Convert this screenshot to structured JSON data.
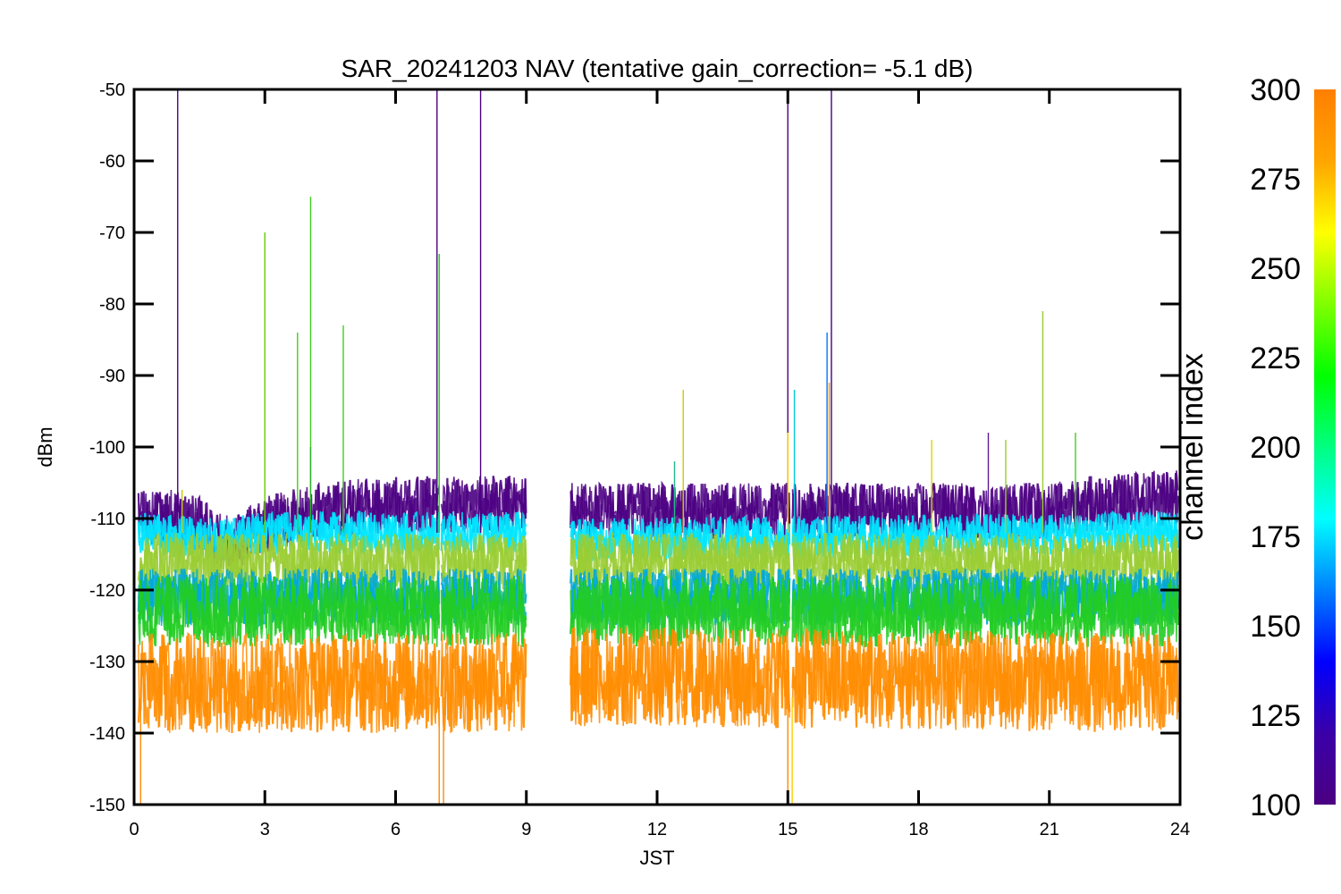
{
  "chart_data": {
    "type": "line",
    "title": "SAR_20241203 NAV (tentative gain_correction= -5.1 dB)",
    "xlabel": "JST",
    "ylabel": "dBm",
    "xlim": [
      0,
      24
    ],
    "ylim": [
      -150,
      -50
    ],
    "xticks": [
      0,
      3,
      6,
      9,
      12,
      15,
      18,
      21,
      24
    ],
    "yticks": [
      -50,
      -60,
      -70,
      -80,
      -90,
      -100,
      -110,
      -120,
      -130,
      -140,
      -150
    ],
    "data_gaps": [
      [
        7.0,
        7.05
      ],
      [
        9.0,
        10.0
      ],
      [
        15.05,
        15.1
      ]
    ],
    "series": [
      {
        "channel": 100,
        "color": "#4b0082",
        "spread": 4,
        "points": [
          [
            0,
            -110
          ],
          [
            1,
            -110
          ],
          [
            1.5,
            -111
          ],
          [
            2.0,
            -113
          ],
          [
            2.3,
            -114
          ],
          [
            2.6,
            -112
          ],
          [
            3,
            -111
          ],
          [
            4,
            -109
          ],
          [
            6,
            -108
          ],
          [
            9,
            -108
          ],
          [
            10,
            -109
          ],
          [
            12,
            -109
          ],
          [
            15,
            -109
          ],
          [
            18,
            -109
          ],
          [
            21,
            -109
          ],
          [
            22,
            -108
          ],
          [
            24,
            -107
          ]
        ]
      },
      {
        "channel": 175,
        "color": "#00e5ff",
        "spread": 3,
        "points": [
          [
            0,
            -112
          ],
          [
            2,
            -113
          ],
          [
            3,
            -112
          ],
          [
            9,
            -112
          ],
          [
            10,
            -113
          ],
          [
            24,
            -112
          ]
        ]
      },
      {
        "channel": 240,
        "color": "#9acd32",
        "spread": 4,
        "points": [
          [
            0,
            -116
          ],
          [
            9,
            -116
          ],
          [
            10,
            -116
          ],
          [
            24,
            -116
          ]
        ]
      },
      {
        "channel": 160,
        "color": "#00a8d8",
        "spread": 4,
        "points": [
          [
            0,
            -121
          ],
          [
            9,
            -121
          ],
          [
            10,
            -121
          ],
          [
            24,
            -121
          ]
        ]
      },
      {
        "channel": 225,
        "color": "#22cc22",
        "spread": 5,
        "points": [
          [
            0,
            -123
          ],
          [
            9,
            -123
          ],
          [
            10,
            -123
          ],
          [
            24,
            -123
          ]
        ]
      },
      {
        "channel": 290,
        "color": "#ff8c00",
        "spread": 7,
        "points": [
          [
            0,
            -133
          ],
          [
            9,
            -133
          ],
          [
            10,
            -132
          ],
          [
            24,
            -133
          ]
        ]
      }
    ],
    "spikes": [
      {
        "x": 1.0,
        "y_top": -50,
        "color": "#4b0082"
      },
      {
        "x": 1.1,
        "y_top": -106,
        "color": "#c8c800"
      },
      {
        "x": 3.0,
        "y_top": -70,
        "color": "#66cc00"
      },
      {
        "x": 3.75,
        "y_top": -84,
        "color": "#44cc22"
      },
      {
        "x": 4.05,
        "y_top": -65,
        "color": "#44cc22"
      },
      {
        "x": 4.05,
        "y_top": -100,
        "color": "#2ab02a"
      },
      {
        "x": 4.8,
        "y_top": -83,
        "color": "#44cc22"
      },
      {
        "x": 6.95,
        "y_top": -50,
        "color": "#4b0082"
      },
      {
        "x": 7.0,
        "y_top": -73,
        "color": "#22cc22"
      },
      {
        "x": 7.95,
        "y_top": -50,
        "color": "#4b0082"
      },
      {
        "x": 12.6,
        "y_top": -92,
        "color": "#d8c800"
      },
      {
        "x": 12.4,
        "y_top": -102,
        "color": "#22bb88"
      },
      {
        "x": 15.0,
        "y_top": -50,
        "color": "#4b0082"
      },
      {
        "x": 15.0,
        "y_top": -98,
        "color": "#ffd000"
      },
      {
        "x": 15.15,
        "y_top": -92,
        "color": "#00ccdd"
      },
      {
        "x": 15.9,
        "y_top": -84,
        "color": "#0077ff"
      },
      {
        "x": 15.95,
        "y_top": -91,
        "color": "#ff9900"
      },
      {
        "x": 16.0,
        "y_top": -50,
        "color": "#4b0082"
      },
      {
        "x": 18.3,
        "y_top": -99,
        "color": "#d8d800"
      },
      {
        "x": 19.6,
        "y_top": -98,
        "color": "#5a1a9a"
      },
      {
        "x": 20.0,
        "y_top": -99,
        "color": "#9acd32"
      },
      {
        "x": 20.85,
        "y_top": -81,
        "color": "#9acd32"
      },
      {
        "x": 21.6,
        "y_top": -98,
        "color": "#44cc22"
      }
    ],
    "dropouts": [
      {
        "x": 0.15,
        "y_bottom": -150,
        "color": "#ff8c00"
      },
      {
        "x": 7.0,
        "y_bottom": -150,
        "color": "#ff8c00"
      },
      {
        "x": 7.1,
        "y_bottom": -150,
        "color": "#ff8c00"
      },
      {
        "x": 15.0,
        "y_bottom": -150,
        "color": "#ff8c00"
      },
      {
        "x": 15.1,
        "y_bottom": -150,
        "color": "#ffd000"
      }
    ],
    "colorbar": {
      "title": "channel index",
      "range": [
        100,
        300
      ],
      "ticks": [
        300,
        275,
        250,
        225,
        200,
        175,
        150,
        125,
        100
      ],
      "colors": [
        "#4b0082",
        "#3a00a8",
        "#0000ff",
        "#0080ff",
        "#00ffff",
        "#00ff80",
        "#00ff00",
        "#80ff00",
        "#ffff00",
        "#ffa500",
        "#ff7f00"
      ]
    }
  }
}
